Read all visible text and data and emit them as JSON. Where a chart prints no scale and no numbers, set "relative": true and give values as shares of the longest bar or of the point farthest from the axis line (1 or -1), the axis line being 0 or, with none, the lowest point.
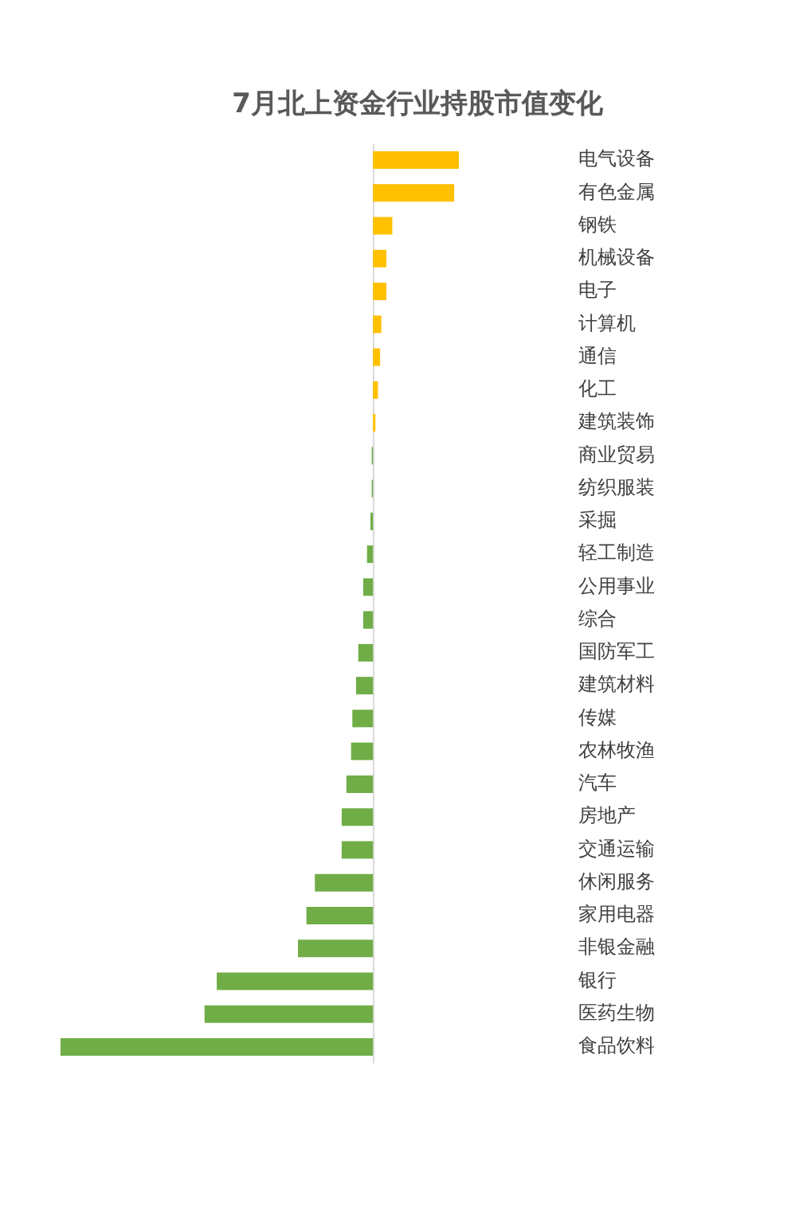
{
  "chart_data": {
    "type": "bar",
    "orientation": "horizontal",
    "relative": true,
    "title": "7月北上资金行业持股市值变化",
    "categories": [
      "电气设备",
      "有色金属",
      "钢铁",
      "机械设备",
      "电子",
      "计算机",
      "通信",
      "化工",
      "建筑装饰",
      "商业贸易",
      "纺织服装",
      "采掘",
      "轻工制造",
      "公用事业",
      "综合",
      "国防军工",
      "建筑材料",
      "传媒",
      "农林牧渔",
      "汽车",
      "房地产",
      "交通运输",
      "休闲服务",
      "家用电器",
      "非银金融",
      "银行",
      "医药生物",
      "食品饮料"
    ],
    "values": [
      0.275,
      0.26,
      0.062,
      0.043,
      0.043,
      0.027,
      0.023,
      0.016,
      0.008,
      -0.004,
      -0.004,
      -0.008,
      -0.019,
      -0.031,
      -0.031,
      -0.047,
      -0.054,
      -0.066,
      -0.07,
      -0.085,
      -0.1,
      -0.1,
      -0.186,
      -0.213,
      -0.24,
      -0.5,
      -0.539,
      -1
    ],
    "colors": [
      "#ffc000",
      "#ffc000",
      "#ffc000",
      "#ffc000",
      "#ffc000",
      "#ffc000",
      "#ffc000",
      "#ffc000",
      "#ffc000",
      "#70ad47",
      "#70ad47",
      "#70ad47",
      "#70ad47",
      "#70ad47",
      "#70ad47",
      "#70ad47",
      "#70ad47",
      "#70ad47",
      "#70ad47",
      "#70ad47",
      "#70ad47",
      "#70ad47",
      "#70ad47",
      "#70ad47",
      "#70ad47",
      "#70ad47",
      "#70ad47",
      "#70ad47"
    ],
    "grid": false,
    "legend": false
  }
}
